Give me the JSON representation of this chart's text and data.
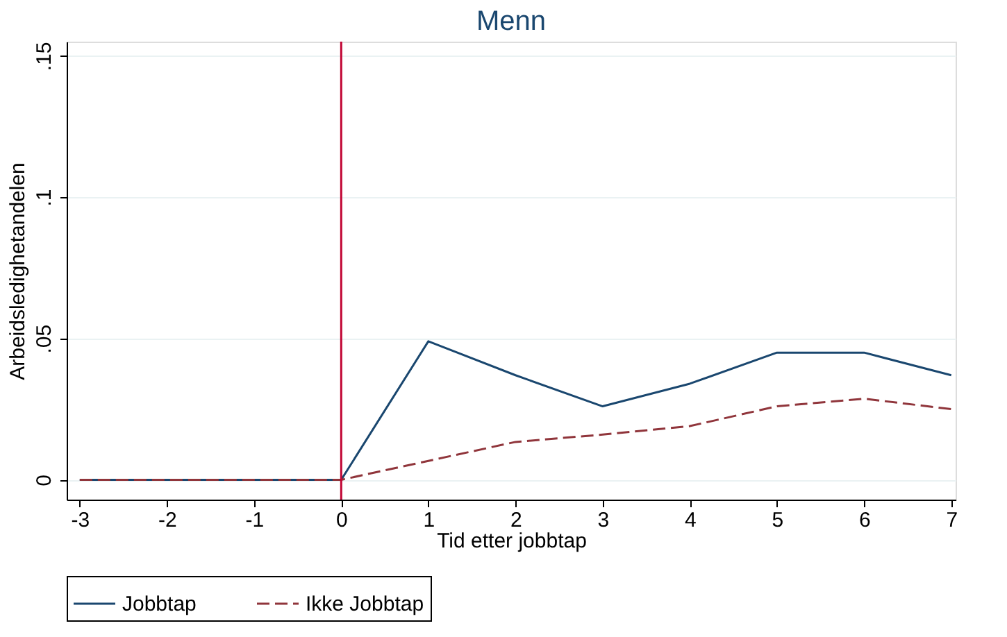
{
  "chart_data": {
    "type": "line",
    "title": "Menn",
    "xlabel": "Tid etter jobbtap",
    "ylabel": "Arbeidsledighetandelen",
    "x": [
      -3,
      -2,
      -1,
      0,
      1,
      2,
      3,
      4,
      5,
      6,
      7
    ],
    "series": [
      {
        "name": "Jobbtap",
        "color": "#1a476f",
        "line_style": "solid",
        "values": [
          0,
          0,
          0,
          0,
          0.049,
          0.037,
          0.026,
          0.034,
          0.045,
          0.045,
          0.037
        ]
      },
      {
        "name": "Ikke Jobbtap",
        "color": "#90353b",
        "line_style": "dashed",
        "values": [
          0,
          0,
          0,
          0,
          0.0067,
          0.0134,
          0.016,
          0.019,
          0.026,
          0.0287,
          0.025
        ]
      }
    ],
    "xlim": [
      -3.15,
      7.05
    ],
    "xticks": [
      -3,
      -2,
      -1,
      0,
      1,
      2,
      3,
      4,
      5,
      6,
      7
    ],
    "ylim": [
      -0.007,
      0.155
    ],
    "yticks": [
      {
        "value": 0,
        "label": "0"
      },
      {
        "value": 0.05,
        "label": ".05"
      },
      {
        "value": 0.1,
        "label": ".1"
      },
      {
        "value": 0.15,
        "label": ".15"
      }
    ],
    "ref_lines": [
      {
        "axis": "x",
        "value": 0,
        "color": "#c10534"
      }
    ],
    "grid": "y",
    "legend": "bottom",
    "marker": "none"
  }
}
